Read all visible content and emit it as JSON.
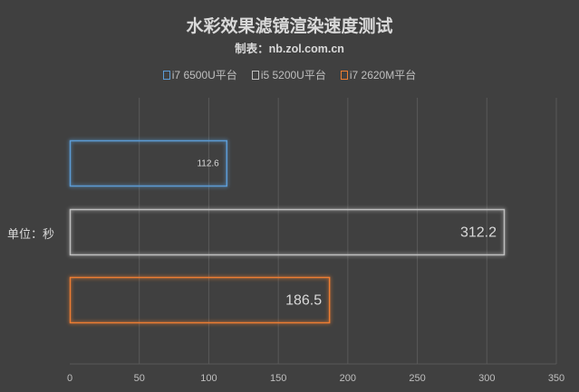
{
  "chart_data": {
    "type": "bar",
    "orientation": "horizontal",
    "title": "水彩效果滤镜渲染速度测试",
    "subtitle": "制表：nb.zol.com.cn",
    "ylabel": "单位：秒",
    "xlabel": "",
    "xlim": [
      0,
      350
    ],
    "xticks": [
      0,
      50,
      100,
      150,
      200,
      250,
      300,
      350
    ],
    "grid": true,
    "legend_position": "top",
    "series": [
      {
        "name": "i7 6500U平台",
        "value": 112.6,
        "label": "112.6",
        "color": "#5b9bd5"
      },
      {
        "name": "i5 5200U平台",
        "value": 312.2,
        "label": "312.2",
        "color": "#bfbfbf"
      },
      {
        "name": "i7 2620M平台",
        "value": 186.5,
        "label": "186.5",
        "color": "#ed7d31"
      }
    ]
  }
}
